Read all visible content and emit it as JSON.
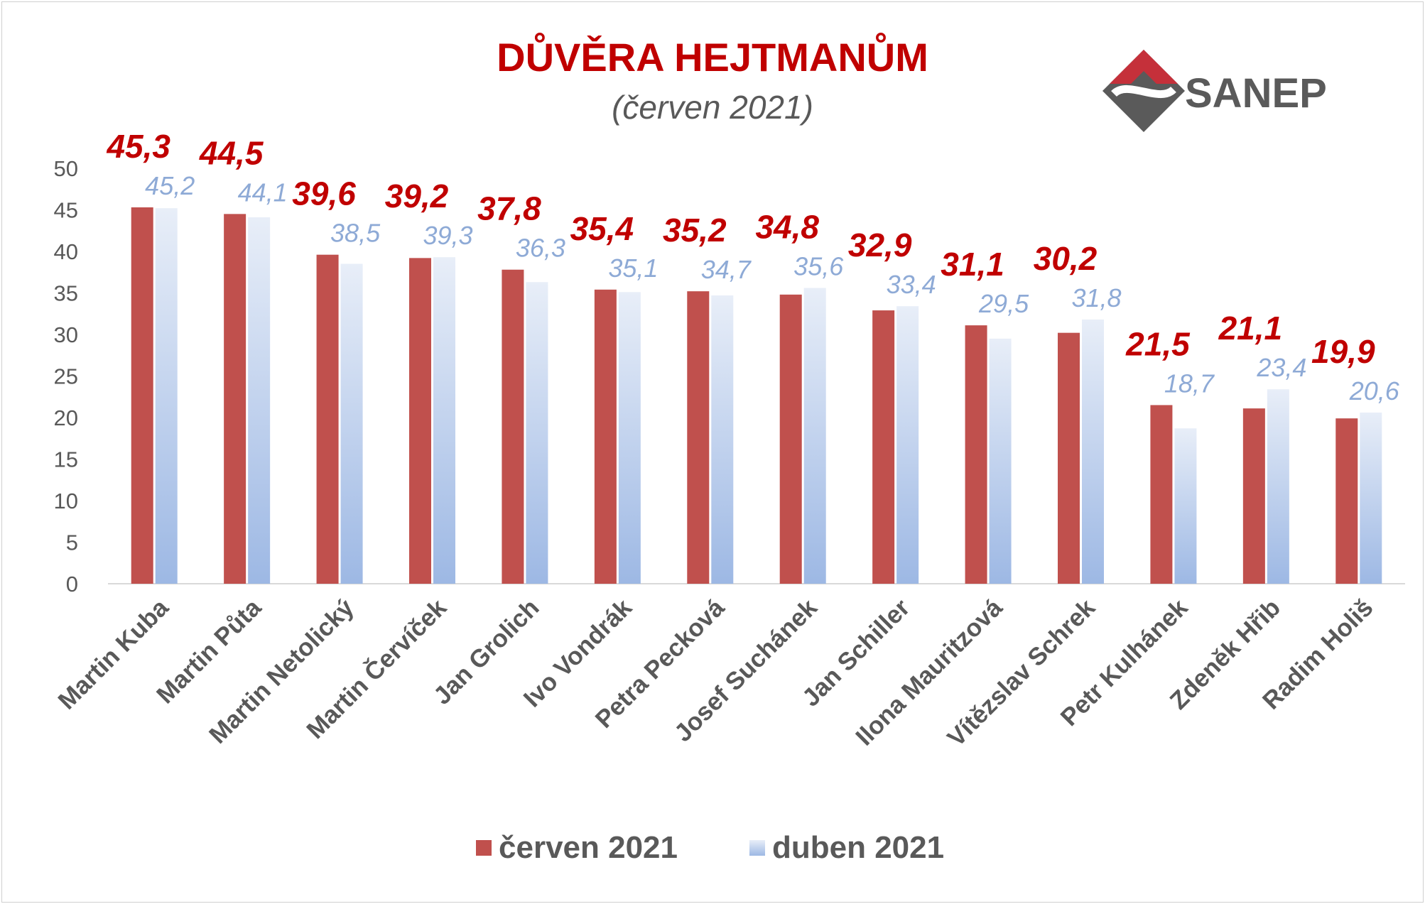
{
  "title": "DŮVĚRA HEJTMANŮM",
  "subtitle": "(červen 2021)",
  "logo_text": "SANEP",
  "colors": {
    "title": "#c00000",
    "series_june": "#c0504d",
    "series_june_label": "#c00000",
    "series_april_top": "#e8eef8",
    "series_april_bottom": "#9db8e4",
    "series_april_label": "#8eaad6",
    "axis_text": "#595959",
    "logo_red": "#c5303a",
    "logo_gray": "#5a5a5a"
  },
  "chart_data": {
    "type": "bar",
    "categories": [
      "Martin Kuba",
      "Martin Půta",
      "Martin Netolický",
      "Martin Červíček",
      "Jan Grolich",
      "Ivo Vondrák",
      "Petra Pecková",
      "Josef Suchánek",
      "Jan Schiller",
      "Ilona Mauritzová",
      "Vítězslav Schrek",
      "Petr Kulhánek",
      "Zdeněk Hřib",
      "Radim Holiš"
    ],
    "series": [
      {
        "name": "červen 2021",
        "values": [
          45.3,
          44.5,
          39.6,
          39.2,
          37.8,
          35.4,
          35.2,
          34.8,
          32.9,
          31.1,
          30.2,
          21.5,
          21.1,
          19.9
        ]
      },
      {
        "name": "duben 2021",
        "values": [
          45.2,
          44.1,
          38.5,
          39.3,
          36.3,
          35.1,
          34.7,
          35.6,
          33.4,
          29.5,
          31.8,
          18.7,
          23.4,
          20.6
        ]
      }
    ],
    "ylim": [
      0,
      50
    ],
    "yticks": [
      "0",
      "5",
      "10",
      "15",
      "20",
      "25",
      "30",
      "35",
      "40",
      "45",
      "50"
    ],
    "grid": false,
    "legend_position": "bottom",
    "decimal_separator": ","
  }
}
